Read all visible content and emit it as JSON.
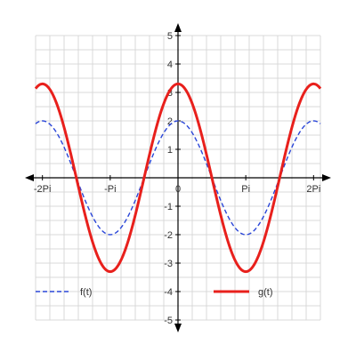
{
  "chart_data": {
    "type": "line",
    "xlim_label": [
      "-2Pi",
      "2Pi"
    ],
    "xlim": [
      -6.6,
      6.6
    ],
    "ylim": [
      -5,
      5
    ],
    "grid": true,
    "x_ticks": [
      {
        "value": -6.2832,
        "label": "-2Pi"
      },
      {
        "value": -3.1416,
        "label": "-Pi"
      },
      {
        "value": 0,
        "label": "0"
      },
      {
        "value": 3.1416,
        "label": "Pi"
      },
      {
        "value": 6.2832,
        "label": "2Pi"
      }
    ],
    "y_ticks": [
      {
        "value": 5,
        "label": "5"
      },
      {
        "value": 4,
        "label": "4"
      },
      {
        "value": 3,
        "label": "3"
      },
      {
        "value": 2,
        "label": "2"
      },
      {
        "value": 1,
        "label": "1"
      },
      {
        "value": -1,
        "label": "-1"
      },
      {
        "value": -2,
        "label": "-2"
      },
      {
        "value": -3,
        "label": "-3"
      },
      {
        "value": -4,
        "label": "-4"
      },
      {
        "value": -5,
        "label": "-5"
      }
    ],
    "legend_position": "bottom",
    "series": [
      {
        "name": "f(t)",
        "function": "2*cos(t)",
        "color": "#2a46d8",
        "style": "dashed",
        "x": [
          -6.6,
          -6.2832,
          -5.4978,
          -4.7124,
          -3.927,
          -3.1416,
          -2.3562,
          -1.5708,
          -0.7854,
          0,
          0.7854,
          1.5708,
          2.3562,
          3.1416,
          3.927,
          4.7124,
          5.4978,
          6.2832,
          6.6
        ],
        "values": [
          1.9,
          2.0,
          1.41,
          0.0,
          -1.41,
          -2.0,
          -1.41,
          0.0,
          1.41,
          2.0,
          1.41,
          0.0,
          -1.41,
          -2.0,
          -1.41,
          0.0,
          1.41,
          2.0,
          1.9
        ]
      },
      {
        "name": "g(t)",
        "function": "3.3*cos(t)",
        "color": "#e8201c",
        "style": "solid",
        "x": [
          -6.6,
          -6.2832,
          -5.4978,
          -4.7124,
          -3.927,
          -3.1416,
          -2.3562,
          -1.5708,
          -0.7854,
          0,
          0.7854,
          1.5708,
          2.3562,
          3.1416,
          3.927,
          4.7124,
          5.4978,
          6.2832,
          6.6
        ],
        "values": [
          3.14,
          3.3,
          2.33,
          0.0,
          -2.33,
          -3.3,
          -2.33,
          0.0,
          2.33,
          3.3,
          2.33,
          0.0,
          -2.33,
          -3.3,
          -2.33,
          0.0,
          2.33,
          3.3,
          3.14
        ]
      }
    ]
  }
}
